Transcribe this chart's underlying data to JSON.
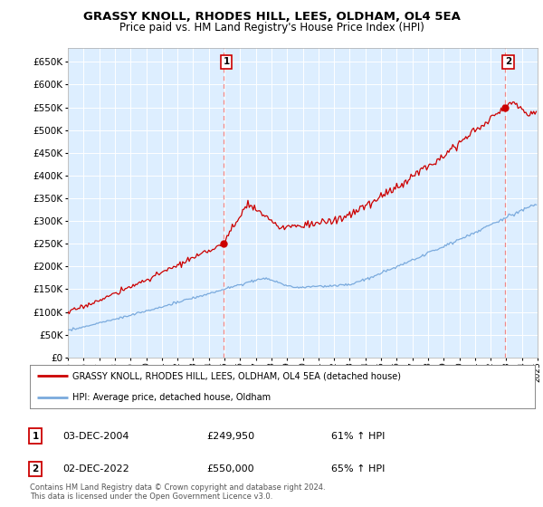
{
  "title": "GRASSY KNOLL, RHODES HILL, LEES, OLDHAM, OL4 5EA",
  "subtitle": "Price paid vs. HM Land Registry's House Price Index (HPI)",
  "ytick_values": [
    0,
    50000,
    100000,
    150000,
    200000,
    250000,
    300000,
    350000,
    400000,
    450000,
    500000,
    550000,
    600000,
    650000
  ],
  "ylim": [
    0,
    680000
  ],
  "year_start": 1995,
  "year_end": 2025,
  "sale1_year": 2004.92,
  "sale1_price": 249950,
  "sale2_year": 2022.92,
  "sale2_price": 550000,
  "line_color_red": "#cc0000",
  "line_color_blue": "#7aaadd",
  "vline_color": "#ee8888",
  "plot_bg_color": "#ddeeff",
  "legend_label_red": "GRASSY KNOLL, RHODES HILL, LEES, OLDHAM, OL4 5EA (detached house)",
  "legend_label_blue": "HPI: Average price, detached house, Oldham",
  "annotation1": [
    "1",
    "03-DEC-2004",
    "£249,950",
    "61% ↑ HPI"
  ],
  "annotation2": [
    "2",
    "02-DEC-2022",
    "£550,000",
    "65% ↑ HPI"
  ],
  "footer": "Contains HM Land Registry data © Crown copyright and database right 2024.\nThis data is licensed under the Open Government Licence v3.0.",
  "title_fontsize": 9.5,
  "subtitle_fontsize": 8.5
}
